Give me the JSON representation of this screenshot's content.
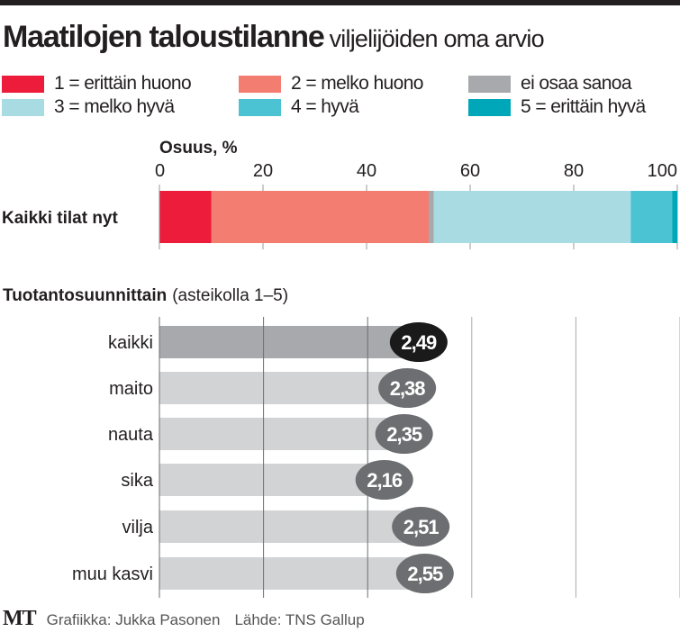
{
  "title": "Maatilojen taloustilanne",
  "subtitle": "viljelijöiden oma arvio",
  "legend": [
    {
      "label": "1 = erittäin huono",
      "color": "#ed1c3a"
    },
    {
      "label": "2 = melko huono",
      "color": "#f47d72"
    },
    {
      "label": "ei osaa sanoa",
      "color": "#a7a9ac"
    },
    {
      "label": "3 = melko hyvä",
      "color": "#a8dce2"
    },
    {
      "label": "4 = hyvä",
      "color": "#4cc3d3"
    },
    {
      "label": "5 = erittäin hyvä",
      "color": "#00a7b8"
    }
  ],
  "chart_data": [
    {
      "type": "bar",
      "stacked": true,
      "orientation": "horizontal",
      "xlabel": "Osuus, %",
      "xlim": [
        0,
        100
      ],
      "xticks": [
        "0",
        "20",
        "40",
        "60",
        "80",
        "100"
      ],
      "categories": [
        "Kaikki tilat nyt"
      ],
      "series": [
        {
          "name": "1 = erittäin huono",
          "values": [
            10
          ]
        },
        {
          "name": "2 = melko huono",
          "values": [
            42
          ]
        },
        {
          "name": "ei osaa sanoa",
          "values": [
            1
          ]
        },
        {
          "name": "3 = melko hyvä",
          "values": [
            38
          ]
        },
        {
          "name": "4 = hyvä",
          "values": [
            8
          ]
        },
        {
          "name": "5 = erittäin hyvä",
          "values": [
            1
          ]
        }
      ]
    },
    {
      "type": "bar",
      "orientation": "horizontal",
      "title": "Tuotantosuunnittain",
      "title_note": "(asteikolla 1–5)",
      "xlim": [
        0,
        5
      ],
      "grid": true,
      "categories": [
        "kaikki",
        "maito",
        "nauta",
        "sika",
        "vilja",
        "muu kasvi"
      ],
      "values": [
        2.49,
        2.38,
        2.35,
        2.16,
        2.51,
        2.55
      ],
      "data_labels": [
        "2,49",
        "2,38",
        "2,35",
        "2,16",
        "2,51",
        "2,55"
      ],
      "highlight": "kaikki",
      "colors": {
        "highlight_bar": "#a7a9ac",
        "bar": "#d1d3d4",
        "highlight_label": "#1a1a1a",
        "label": "#6d6e71"
      }
    }
  ],
  "footer": {
    "logo": "MT",
    "graphics": "Grafiikka: Jukka Pasonen",
    "source": "Lähde: TNS Gallup"
  }
}
